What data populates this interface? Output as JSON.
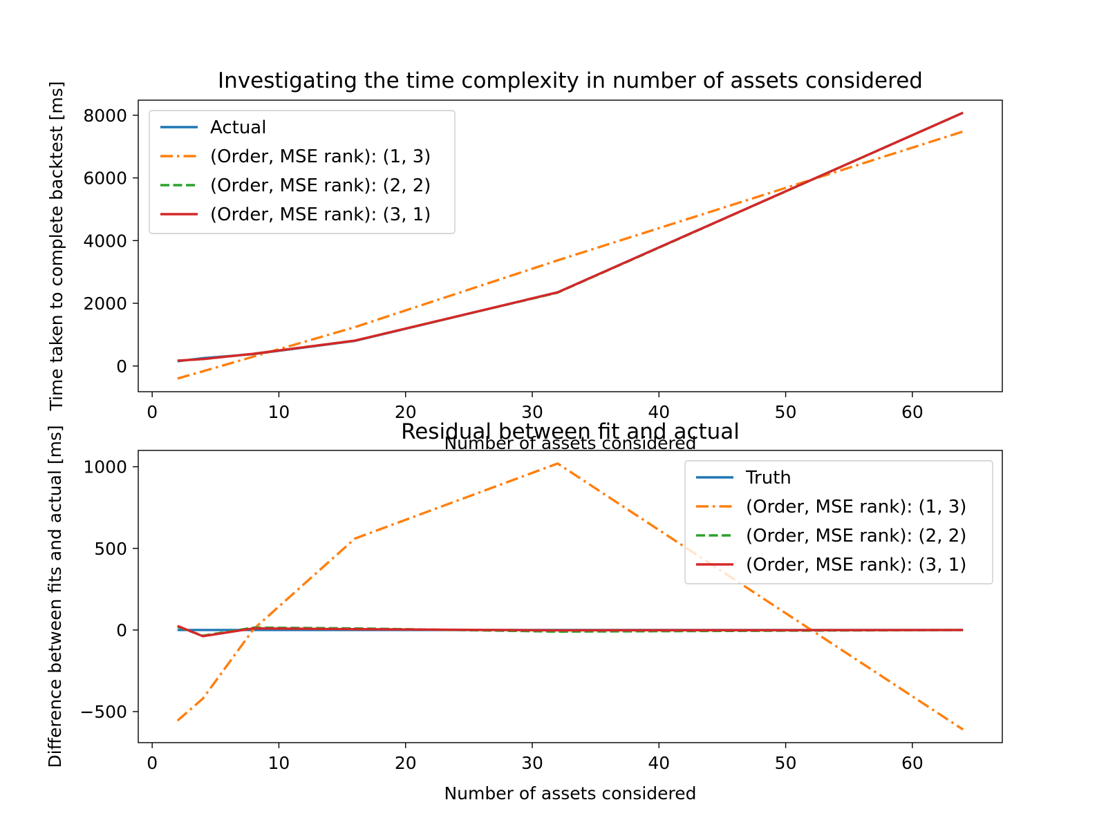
{
  "chart_data": [
    {
      "type": "line",
      "title": "Investigating the time complexity in number of assets considered",
      "xlabel": "Number of assets considered",
      "ylabel": "Time taken to complete backtest [ms]",
      "xlim": [
        -1.1,
        67.1
      ],
      "ylim": [
        -820,
        8480
      ],
      "xticks": [
        0,
        10,
        20,
        30,
        40,
        50,
        60
      ],
      "yticks": [
        0,
        2000,
        4000,
        6000,
        8000
      ],
      "xtick_labels": [
        "0",
        "10",
        "20",
        "30",
        "40",
        "50",
        "60"
      ],
      "ytick_labels": [
        "0",
        "2000",
        "4000",
        "6000",
        "8000"
      ],
      "legend_position": "upper-left",
      "grid": false,
      "series": [
        {
          "name": "Actual",
          "color": "#1f77b4",
          "style": "solid",
          "x": [
            2,
            4,
            8,
            16,
            32,
            64
          ],
          "y": [
            150,
            250,
            380,
            800,
            2350,
            8080
          ]
        },
        {
          "name": "(Order, MSE rank): (1, 3)",
          "color": "#ff7f0e",
          "style": "dashdot",
          "x": [
            2,
            4,
            8,
            16,
            32,
            64
          ],
          "y": [
            -400,
            -170,
            300,
            1240,
            3370,
            7480
          ]
        },
        {
          "name": "(Order, MSE rank): (2, 2)",
          "color": "#2ca02c",
          "style": "dashed",
          "x": [
            2,
            4,
            8,
            16,
            32,
            64
          ],
          "y": [
            170,
            220,
            390,
            810,
            2340,
            8080
          ]
        },
        {
          "name": "(Order, MSE rank): (3, 1)",
          "color": "#d62728",
          "style": "solid",
          "x": [
            2,
            4,
            8,
            16,
            32,
            64
          ],
          "y": [
            170,
            220,
            390,
            810,
            2350,
            8080
          ]
        }
      ]
    },
    {
      "type": "line",
      "title": "Residual between fit and actual",
      "xlabel": "Number of assets considered",
      "ylabel": "Difference between fits and actual [ms]",
      "xlim": [
        -1.1,
        67.1
      ],
      "ylim": [
        -690,
        1100
      ],
      "xticks": [
        0,
        10,
        20,
        30,
        40,
        50,
        60
      ],
      "yticks": [
        -500,
        0,
        500,
        1000
      ],
      "xtick_labels": [
        "0",
        "10",
        "20",
        "30",
        "40",
        "50",
        "60"
      ],
      "ytick_labels": [
        "−500",
        "0",
        "500",
        "1000"
      ],
      "legend_position": "upper-right",
      "grid": false,
      "series": [
        {
          "name": "Truth",
          "color": "#1f77b4",
          "style": "solid",
          "x": [
            2,
            4,
            8,
            16,
            32,
            64
          ],
          "y": [
            0,
            0,
            0,
            0,
            0,
            0
          ]
        },
        {
          "name": "(Order, MSE rank): (1, 3)",
          "color": "#ff7f0e",
          "style": "dashdot",
          "x": [
            2,
            4,
            8,
            16,
            32,
            64
          ],
          "y": [
            -555,
            -420,
            5,
            560,
            1020,
            -610
          ]
        },
        {
          "name": "(Order, MSE rank): (2, 2)",
          "color": "#2ca02c",
          "style": "dashed",
          "x": [
            2,
            4,
            8,
            16,
            32,
            64
          ],
          "y": [
            20,
            -35,
            15,
            10,
            -10,
            0
          ]
        },
        {
          "name": "(Order, MSE rank): (3, 1)",
          "color": "#d62728",
          "style": "solid",
          "x": [
            2,
            4,
            8,
            16,
            32,
            64
          ],
          "y": [
            25,
            -38,
            10,
            5,
            -2,
            0
          ]
        }
      ]
    }
  ]
}
